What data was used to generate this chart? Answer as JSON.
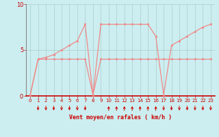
{
  "xlabel": "Vent moyen/en rafales ( km/h )",
  "background_color": "#cceef0",
  "grid_color": "#aacccc",
  "line_color": "#f08888",
  "xlim": [
    -0.5,
    23.5
  ],
  "ylim": [
    0,
    10
  ],
  "yticks": [
    0,
    5,
    10
  ],
  "xticks": [
    0,
    1,
    2,
    3,
    4,
    5,
    6,
    7,
    8,
    9,
    10,
    11,
    12,
    13,
    14,
    15,
    16,
    17,
    18,
    19,
    20,
    21,
    22,
    23
  ],
  "series1_x": [
    0,
    1,
    2,
    3,
    4,
    5,
    6,
    7,
    8,
    9,
    10,
    11,
    12,
    13,
    14,
    15,
    16,
    17,
    18,
    19,
    20,
    21,
    22,
    23
  ],
  "series1_y": [
    0.1,
    4.0,
    4.0,
    4.0,
    4.0,
    4.0,
    4.0,
    4.0,
    0.1,
    4.0,
    4.0,
    4.0,
    4.0,
    4.0,
    4.0,
    4.0,
    4.0,
    4.0,
    4.0,
    4.0,
    4.0,
    4.0,
    4.0,
    4.0
  ],
  "series2_x": [
    0,
    1,
    2,
    3,
    4,
    5,
    6,
    7,
    8,
    9,
    10,
    11,
    12,
    13,
    14,
    15,
    16,
    17,
    18,
    19,
    20,
    21,
    22,
    23
  ],
  "series2_y": [
    0.1,
    4.0,
    4.2,
    4.5,
    5.0,
    5.5,
    6.0,
    7.8,
    0.1,
    7.8,
    7.8,
    7.8,
    7.8,
    7.8,
    7.8,
    7.8,
    6.5,
    0.1,
    5.5,
    6.0,
    6.5,
    7.0,
    7.5,
    7.8
  ],
  "arrows_down_x": [
    1,
    2,
    3,
    4,
    5,
    6,
    7,
    17,
    18,
    19,
    20,
    21,
    22,
    23
  ],
  "arrows_up_x": [
    10,
    11,
    12,
    13,
    14,
    15,
    16
  ],
  "arrows_down17_x": [
    17
  ],
  "xlabel_color": "#cc0000",
  "tick_color": "#cc0000",
  "arrow_color": "#cc0000",
  "spine_color": "#cc0000",
  "left_spine_color": "#888888"
}
